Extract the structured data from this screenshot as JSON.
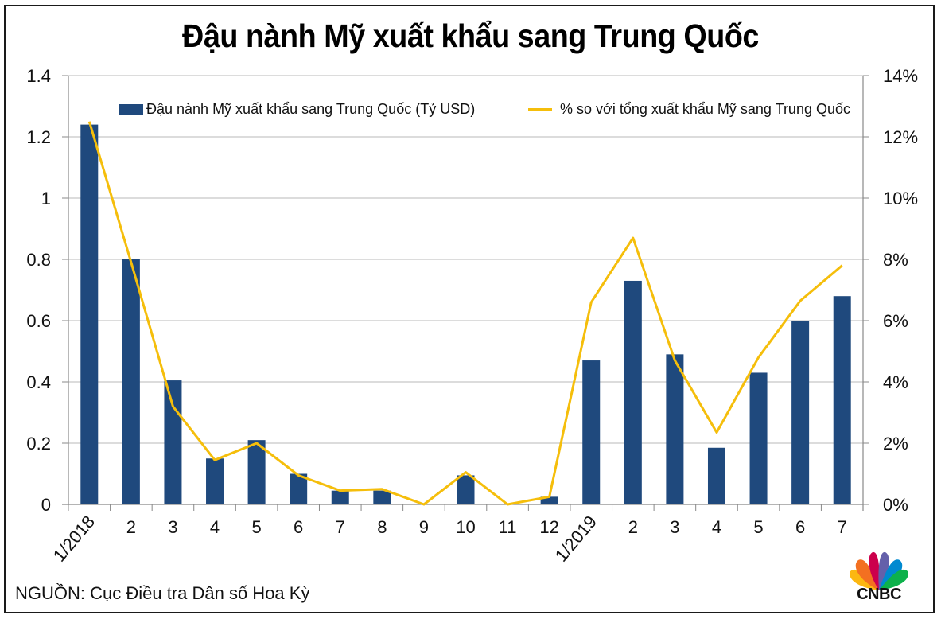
{
  "title": "Đậu nành Mỹ xuất khẩu sang Trung Quốc",
  "source": "NGUỒN: Cục Điều tra Dân số Hoa Kỳ",
  "logo": {
    "text": "CNBC",
    "icon": "cnbc-peacock-icon"
  },
  "legend": {
    "bar_label": "Đậu nành Mỹ xuất khẩu sang Trung Quốc (Tỷ USD)",
    "line_label": "% so với tổng xuất khẩu Mỹ sang Trung Quốc"
  },
  "colors": {
    "bar": "#1f497d",
    "line": "#f5be0b",
    "grid": "#d0d0d0",
    "axis": "#888888"
  },
  "chart_data": {
    "type": "bar",
    "title": "Đậu nành Mỹ xuất khẩu sang Trung Quốc",
    "xlabel": "",
    "ylabel": "Tỷ USD",
    "y2label": "%",
    "categories": [
      "1/2018",
      "2",
      "3",
      "4",
      "5",
      "6",
      "7",
      "8",
      "9",
      "10",
      "11",
      "12",
      "1/2019",
      "2",
      "3",
      "4",
      "5",
      "6",
      "7"
    ],
    "series": [
      {
        "name": "Đậu nành Mỹ xuất khẩu sang Trung Quốc (Tỷ USD)",
        "type": "bar",
        "axis": "left",
        "values": [
          1.24,
          0.8,
          0.405,
          0.15,
          0.21,
          0.1,
          0.045,
          0.045,
          0.0,
          0.095,
          0.0,
          0.025,
          0.47,
          0.73,
          0.49,
          0.185,
          0.43,
          0.6,
          0.68
        ]
      },
      {
        "name": "% so với tổng xuất khẩu Mỹ sang Trung Quốc",
        "type": "line",
        "axis": "right",
        "values": [
          12.5,
          7.9,
          3.2,
          1.45,
          2.0,
          0.95,
          0.45,
          0.5,
          0.0,
          1.05,
          0.0,
          0.25,
          6.6,
          8.7,
          4.7,
          2.35,
          4.8,
          6.65,
          7.8
        ]
      }
    ],
    "ylim": [
      0,
      1.4
    ],
    "y2lim": [
      0,
      14
    ],
    "yticks": [
      "0",
      "0.2",
      "0.4",
      "0.6",
      "0.8",
      "1",
      "1.2",
      "1.4"
    ],
    "y2ticks": [
      "0%",
      "2%",
      "4%",
      "6%",
      "8%",
      "10%",
      "12%",
      "14%"
    ],
    "rotated_labels": [
      "1/2018",
      "1/2019"
    ],
    "grid": true,
    "legend_position": "top"
  }
}
